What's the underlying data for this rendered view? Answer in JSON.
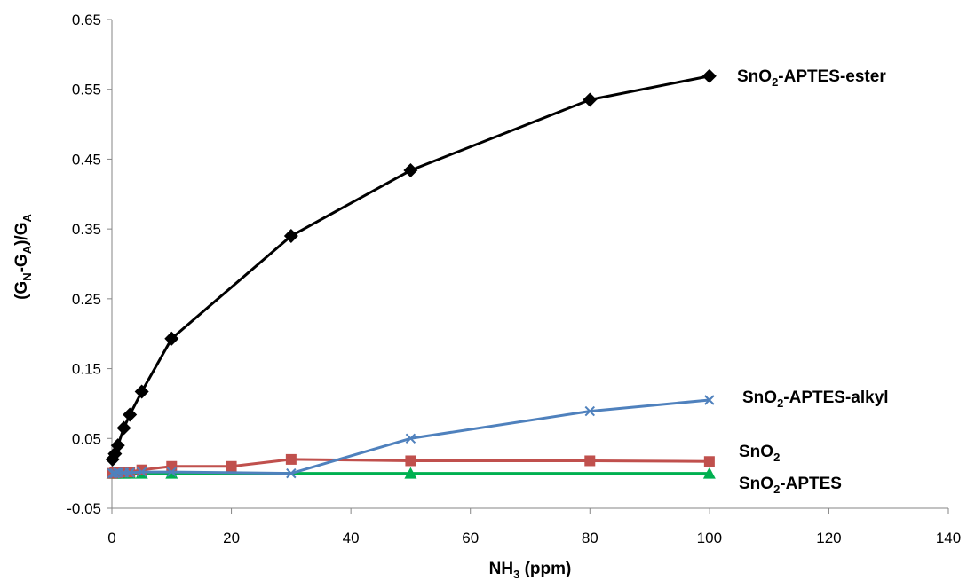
{
  "chart_data": {
    "type": "line",
    "xlabel": {
      "main": "NH",
      "sub": "3",
      "rest": " (ppm)"
    },
    "ylabel": {
      "parts": [
        {
          "t": "(G",
          "sub": false
        },
        {
          "t": "N",
          "sub": true
        },
        {
          "t": "-G",
          "sub": false
        },
        {
          "t": "A",
          "sub": true
        },
        {
          "t": ")/G",
          "sub": false
        },
        {
          "t": "A",
          "sub": true
        }
      ]
    },
    "xlim": [
      0,
      140
    ],
    "ylim": [
      -0.05,
      0.65
    ],
    "x_ticks": [
      0,
      20,
      40,
      60,
      80,
      100,
      120,
      140
    ],
    "y_ticks": [
      -0.05,
      0.05,
      0.15,
      0.25,
      0.35,
      0.45,
      0.55,
      0.65
    ],
    "x_tick_labels": [
      "0",
      "20",
      "40",
      "60",
      "80",
      "100",
      "120",
      "140"
    ],
    "y_tick_labels": [
      "-0.05",
      "0.05",
      "0.15",
      "0.25",
      "0.35",
      "0.45",
      "0.55",
      "0.65"
    ],
    "grid": false,
    "series": [
      {
        "name": "SnO2-APTES-ester",
        "label_parts": [
          {
            "t": "SnO",
            "sub": false
          },
          {
            "t": "2",
            "sub": true
          },
          {
            "t": "-APTES-ester",
            "sub": false
          }
        ],
        "color": "#000000",
        "marker": "diamond",
        "x": [
          0.1,
          0.5,
          1,
          2,
          3,
          5,
          10,
          30,
          50,
          80,
          100
        ],
        "y": [
          0.02,
          0.028,
          0.04,
          0.065,
          0.084,
          0.117,
          0.193,
          0.34,
          0.434,
          0.535,
          0.569
        ]
      },
      {
        "name": "SnO2-APTES-alkyl",
        "label_parts": [
          {
            "t": "SnO",
            "sub": false
          },
          {
            "t": "2",
            "sub": true
          },
          {
            "t": "-APTES-alkyl",
            "sub": false
          }
        ],
        "color": "#4f81bd",
        "marker": "x",
        "x": [
          0.1,
          0.5,
          1,
          2,
          3,
          5,
          10,
          30,
          50,
          80,
          100
        ],
        "y": [
          0.0,
          0.0,
          0.001,
          0.001,
          0.001,
          0.002,
          0.002,
          0.0,
          0.05,
          0.089,
          0.105
        ]
      },
      {
        "name": "SnO2",
        "label_parts": [
          {
            "t": "SnO",
            "sub": false
          },
          {
            "t": "2",
            "sub": true
          }
        ],
        "color": "#c0504d",
        "marker": "square",
        "x": [
          0.1,
          0.5,
          1,
          2,
          3,
          5,
          10,
          20,
          30,
          50,
          80,
          100
        ],
        "y": [
          0.0,
          0.001,
          0.001,
          0.002,
          0.002,
          0.005,
          0.01,
          0.01,
          0.02,
          0.018,
          0.018,
          0.017
        ]
      },
      {
        "name": "SnO2-APTES",
        "label_parts": [
          {
            "t": "SnO",
            "sub": false
          },
          {
            "t": "2",
            "sub": true
          },
          {
            "t": "-APTES",
            "sub": false
          }
        ],
        "color": "#00b050",
        "marker": "triangle",
        "x": [
          0.1,
          0.5,
          1,
          2,
          3,
          5,
          10,
          50,
          100
        ],
        "y": [
          0.0,
          0.0,
          0.0,
          0.0,
          0.0,
          0.0,
          0.0,
          0.0,
          0.0
        ]
      }
    ]
  }
}
